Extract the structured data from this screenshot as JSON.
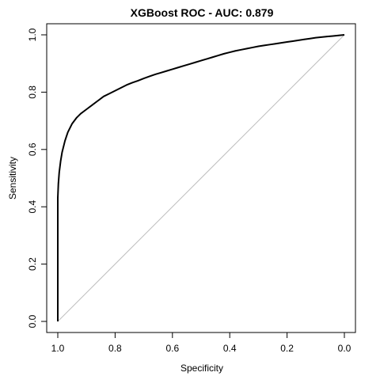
{
  "chart_data": {
    "type": "line",
    "title": "XGBoost ROC - AUC: 0.879",
    "xlabel": "Specificity",
    "ylabel": "Sensitivity",
    "x_reversed": true,
    "xlim": [
      1.0,
      0.0
    ],
    "ylim": [
      0.0,
      1.0
    ],
    "x_ticks": [
      "1.0",
      "0.8",
      "0.6",
      "0.4",
      "0.2",
      "0.0"
    ],
    "y_ticks": [
      "0.0",
      "0.2",
      "0.4",
      "0.6",
      "0.8",
      "1.0"
    ],
    "grid": false,
    "legend": "none",
    "series": [
      {
        "line_color": "#000000",
        "specificity": [
          1.0,
          1.0,
          1.0,
          0.998,
          0.995,
          0.99,
          0.985,
          0.975,
          0.965,
          0.95,
          0.935,
          0.92,
          0.9,
          0.88,
          0.86,
          0.84,
          0.82,
          0.8,
          0.78,
          0.76,
          0.74,
          0.72,
          0.7,
          0.68,
          0.66,
          0.64,
          0.62,
          0.6,
          0.58,
          0.56,
          0.54,
          0.52,
          0.5,
          0.48,
          0.46,
          0.44,
          0.42,
          0.4,
          0.38,
          0.36,
          0.34,
          0.32,
          0.3,
          0.28,
          0.26,
          0.24,
          0.22,
          0.2,
          0.18,
          0.16,
          0.14,
          0.12,
          0.1,
          0.08,
          0.06,
          0.04,
          0.02,
          0.0
        ],
        "sensitivity": [
          0.0,
          0.2,
          0.43,
          0.48,
          0.52,
          0.56,
          0.59,
          0.63,
          0.66,
          0.69,
          0.71,
          0.725,
          0.74,
          0.755,
          0.77,
          0.785,
          0.795,
          0.805,
          0.815,
          0.825,
          0.833,
          0.84,
          0.848,
          0.855,
          0.862,
          0.868,
          0.874,
          0.88,
          0.886,
          0.892,
          0.898,
          0.904,
          0.91,
          0.916,
          0.922,
          0.928,
          0.934,
          0.939,
          0.944,
          0.948,
          0.952,
          0.956,
          0.96,
          0.963,
          0.966,
          0.969,
          0.972,
          0.975,
          0.978,
          0.981,
          0.984,
          0.987,
          0.99,
          0.992,
          0.994,
          0.996,
          0.998,
          1.0
        ]
      },
      {
        "line_color": "#bebebe",
        "specificity": [
          1.0,
          0.0
        ],
        "sensitivity": [
          0.0,
          1.0
        ]
      }
    ]
  }
}
